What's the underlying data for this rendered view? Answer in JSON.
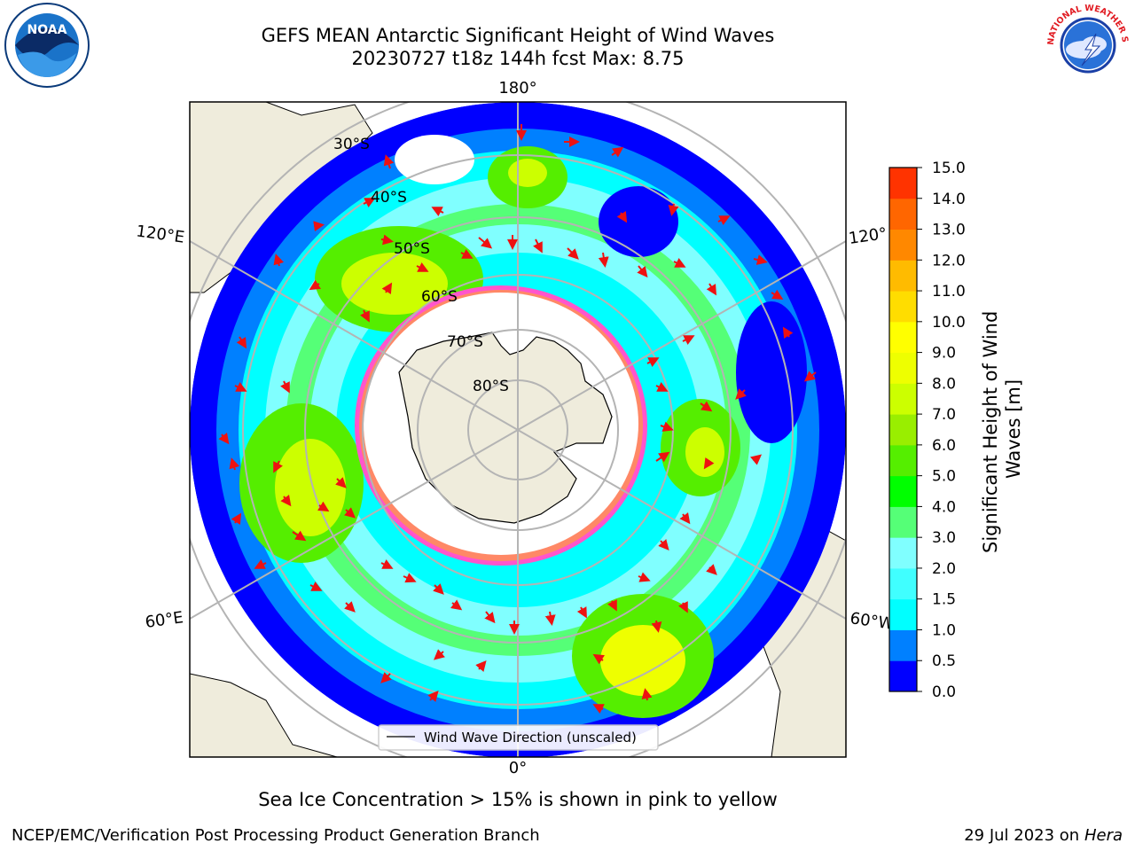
{
  "header": {
    "title_line1": "GEFS MEAN Antarctic Significant Height of Wind Waves",
    "title_line2": "20230727 t18z 144h fcst   Max: 8.75"
  },
  "logos": {
    "left": "NOAA",
    "right": "NATIONAL WEATHER SERVICE"
  },
  "map": {
    "projection": "south-polar-stereographic",
    "longitude_labels": [
      "180°",
      "120°E",
      "120°",
      "60°E",
      "60°W",
      "0°"
    ],
    "latitude_labels": [
      "30°S",
      "40°S",
      "50°S",
      "60°S",
      "70°S",
      "80°S"
    ],
    "legend_label": "Wind Wave Direction (unscaled)",
    "colors": {
      "land": "#efecdc",
      "sea_ice": "#ff55cc",
      "arrow": "#ee1111",
      "grid": "#b4b4b4"
    }
  },
  "colorbar": {
    "label": "Significant Height of Wind Waves [m]",
    "ticks": [
      "15.0",
      "14.0",
      "13.0",
      "12.0",
      "11.0",
      "10.0",
      "9.0",
      "8.0",
      "7.0",
      "6.0",
      "5.0",
      "4.0",
      "3.0",
      "2.0",
      "1.5",
      "1.0",
      "0.5",
      "0.0"
    ],
    "colors": [
      "#0000ff",
      "#0080ff",
      "#00ffff",
      "#40ffff",
      "#80ffff",
      "#55ff77",
      "#00ff00",
      "#55ee00",
      "#99ee00",
      "#ccff00",
      "#eeff00",
      "#ffff00",
      "#ffdd00",
      "#ffbb00",
      "#ff8800",
      "#ff6600",
      "#ff3300"
    ]
  },
  "caption": "Sea Ice Concentration > 15% is shown in pink to yellow",
  "footer": {
    "left": "NCEP/EMC/Verification Post Processing Product Generation Branch",
    "date": "29 Jul 2023 on ",
    "machine": "Hera"
  }
}
